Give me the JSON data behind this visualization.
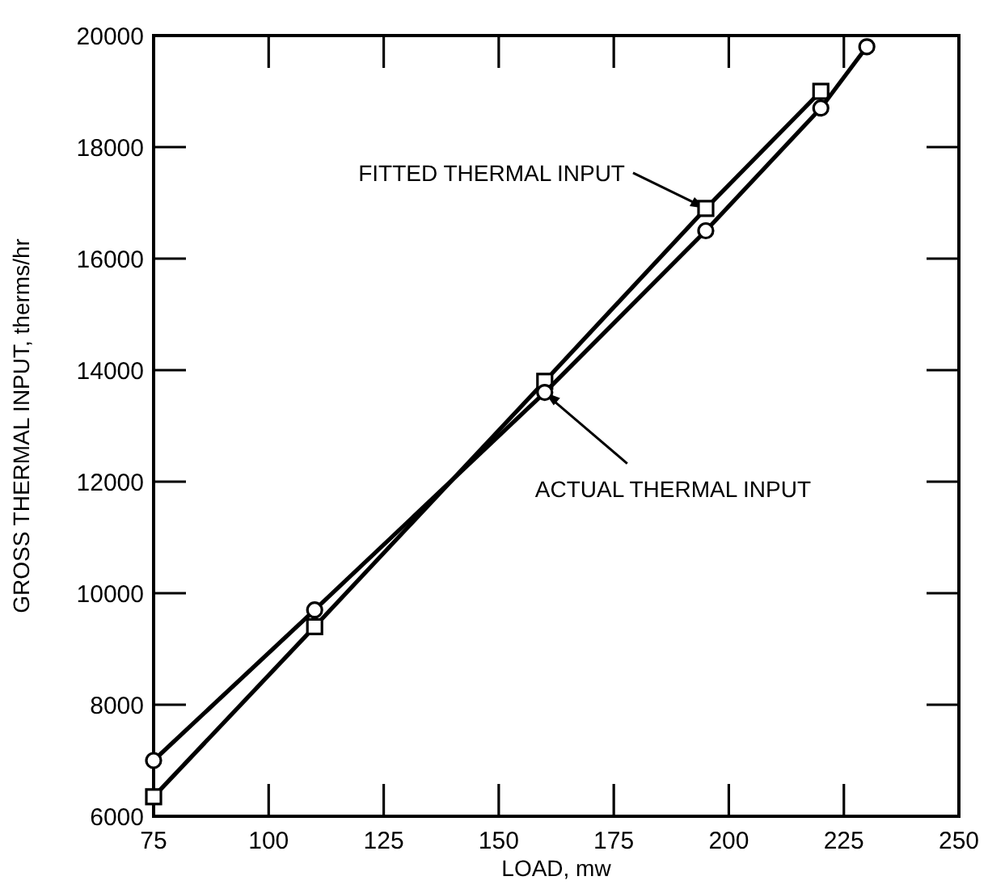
{
  "chart_data": {
    "type": "line",
    "xlabel": "LOAD, mw",
    "ylabel": "GROSS THERMAL INPUT, therms/hr",
    "xlim": [
      75,
      250
    ],
    "xticks": [
      75,
      100,
      125,
      150,
      175,
      200,
      225,
      250
    ],
    "ylim": [
      6000,
      20000
    ],
    "yticks": [
      6000,
      8000,
      10000,
      12000,
      14000,
      16000,
      18000,
      20000
    ],
    "grid": false,
    "line_style": "solid",
    "series": [
      {
        "color": "#000000",
        "marker": "square",
        "x": [
          75,
          110,
          160,
          195,
          220
        ],
        "values": [
          6350,
          9400,
          13800,
          16900,
          19000
        ]
      },
      {
        "color": "#000000",
        "marker": "circle",
        "x": [
          75,
          110,
          160,
          195,
          220,
          230
        ],
        "values": [
          7000,
          9700,
          13600,
          16500,
          18700,
          19800
        ]
      }
    ],
    "annotations": [
      {
        "text": "FITTED THERMAL INPUT",
        "x": 195,
        "y": 16900
      },
      {
        "text": "ACTUAL THERMAL INPUT",
        "x": 160,
        "y": 13600
      }
    ]
  }
}
